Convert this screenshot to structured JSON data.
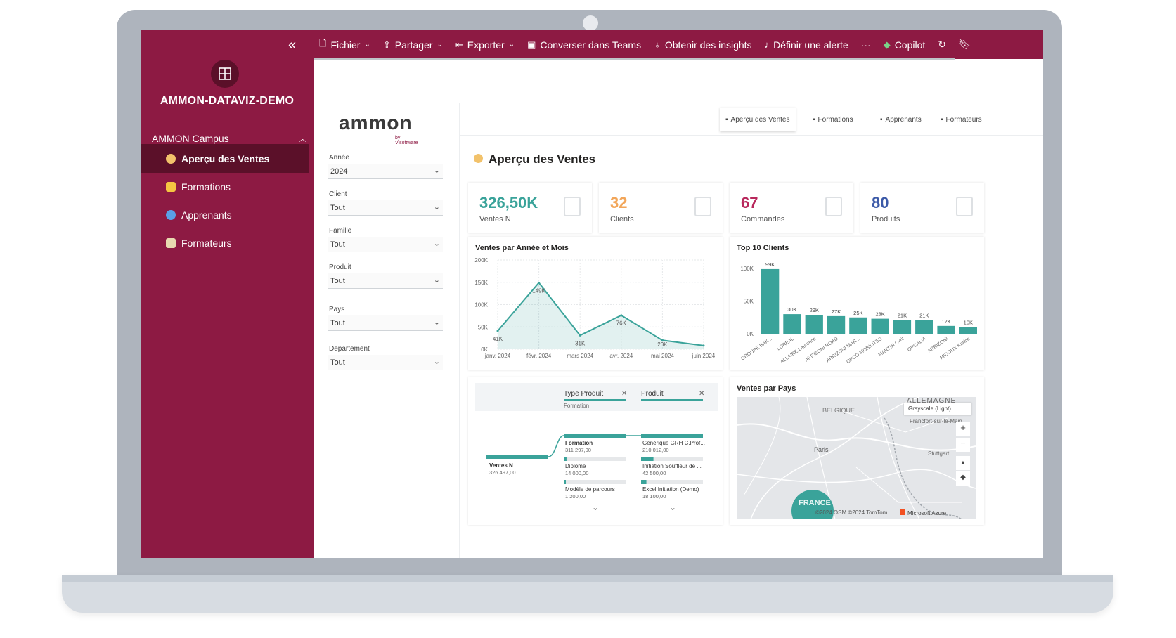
{
  "sidebar": {
    "workspace_title": "AMMON-DATAVIZ-DEMO",
    "section": "AMMON Campus",
    "items": [
      {
        "label": "Aperçu des Ventes",
        "icon": "money-bag-icon",
        "color": "#f2c26b"
      },
      {
        "label": "Formations",
        "icon": "folder-icon",
        "color": "#f5c542"
      },
      {
        "label": "Apprenants",
        "icon": "magnifier-icon",
        "color": "#5aa0e6"
      },
      {
        "label": "Formateurs",
        "icon": "clipboard-icon",
        "color": "#e8d9b0"
      }
    ]
  },
  "toolbar": {
    "fichier": "Fichier",
    "partager": "Partager",
    "exporter": "Exporter",
    "teams": "Converser dans Teams",
    "insights": "Obtenir des insights",
    "alerte": "Définir une alerte",
    "more": "···",
    "copilot": "Copilot"
  },
  "report": {
    "logo_text": "ammon",
    "logo_sub": "by Visoftware",
    "tabs": [
      "Aperçu des Ventes",
      "Formations",
      "Apprenants",
      "Formateurs"
    ],
    "title": "Aperçu des Ventes",
    "filters": [
      {
        "label": "Année",
        "value": "2024"
      },
      {
        "label": "Client",
        "value": "Tout"
      },
      {
        "label": "Famille",
        "value": "Tout"
      },
      {
        "label": "Produit",
        "value": "Tout"
      },
      {
        "label": "Pays",
        "value": "Tout"
      },
      {
        "label": "Departement",
        "value": "Tout"
      }
    ],
    "kpis": [
      {
        "value": "326,50K",
        "label": "Ventes N",
        "color": "#3aa39a"
      },
      {
        "value": "32",
        "label": "Clients",
        "color": "#f2a65a"
      },
      {
        "value": "67",
        "label": "Commandes",
        "color": "#b8285c"
      },
      {
        "value": "80",
        "label": "Produits",
        "color": "#3c5aa8"
      }
    ]
  },
  "chart_data": [
    {
      "type": "area",
      "title": "Ventes par Année et Mois",
      "categories": [
        "janv. 2024",
        "févr. 2024",
        "mars 2024",
        "avr. 2024",
        "mai 2024",
        "juin 2024"
      ],
      "values": [
        41,
        149,
        31,
        76,
        20,
        8
      ],
      "data_labels": [
        "41K",
        "149K",
        "31K",
        "76K",
        "20K",
        ""
      ],
      "yticks": [
        "0K",
        "50K",
        "100K",
        "150K",
        "200K"
      ],
      "ylim": [
        0,
        200
      ],
      "grid": true
    },
    {
      "type": "bar",
      "title": "Top 10 Clients",
      "categories": [
        "GROUPE BAK...",
        "LOREAL",
        "ALLAIRE Laurence",
        "ARRIZONI ROAD",
        "ARRIZONI MAR...",
        "OPCO MOBILITES",
        "MARTIN Cyril",
        "OPCALIA",
        "ARRIZONI",
        "MIDOUX Karine"
      ],
      "values": [
        99,
        30,
        29,
        27,
        25,
        23,
        21,
        21,
        12,
        10
      ],
      "data_labels": [
        "99K",
        "30K",
        "29K",
        "27K",
        "25K",
        "23K",
        "21K",
        "21K",
        "12K",
        "10K"
      ],
      "yticks": [
        "0K",
        "50K",
        "100K"
      ],
      "ylim": [
        0,
        100
      ],
      "color": "#3aa39a"
    }
  ],
  "decomp": {
    "col1_title": "Type Produit",
    "col1_sub": "Formation",
    "col2_title": "Produit",
    "root_label": "Ventes N",
    "root_value": "326 497,00",
    "col1": [
      {
        "label": "Formation",
        "value": "311 297,00",
        "fraction": 1.0
      },
      {
        "label": "Diplôme",
        "value": "14 000,00",
        "fraction": 0.045
      },
      {
        "label": "Modèle de parcours",
        "value": "1 200,00",
        "fraction": 0.004
      }
    ],
    "col2": [
      {
        "label": "Générique GRH C.Prof...",
        "value": "210 012,00",
        "fraction": 1.0
      },
      {
        "label": "Initiation Souffleur de ...",
        "value": "42 500,00",
        "fraction": 0.2
      },
      {
        "label": "Excel Initiation (Demo)",
        "value": "18 100,00",
        "fraction": 0.086
      }
    ]
  },
  "map": {
    "title": "Ventes par Pays",
    "style": "Grayscale (Light)",
    "labels": [
      "ALLEMAGNE",
      "BELGIQUE",
      "Paris",
      "Francfort-sur-le-Main",
      "Stuttgart",
      "FRANCE"
    ],
    "credits": "©2024 OSM ©2024 TomTom",
    "brand": "Microsoft Azure"
  }
}
